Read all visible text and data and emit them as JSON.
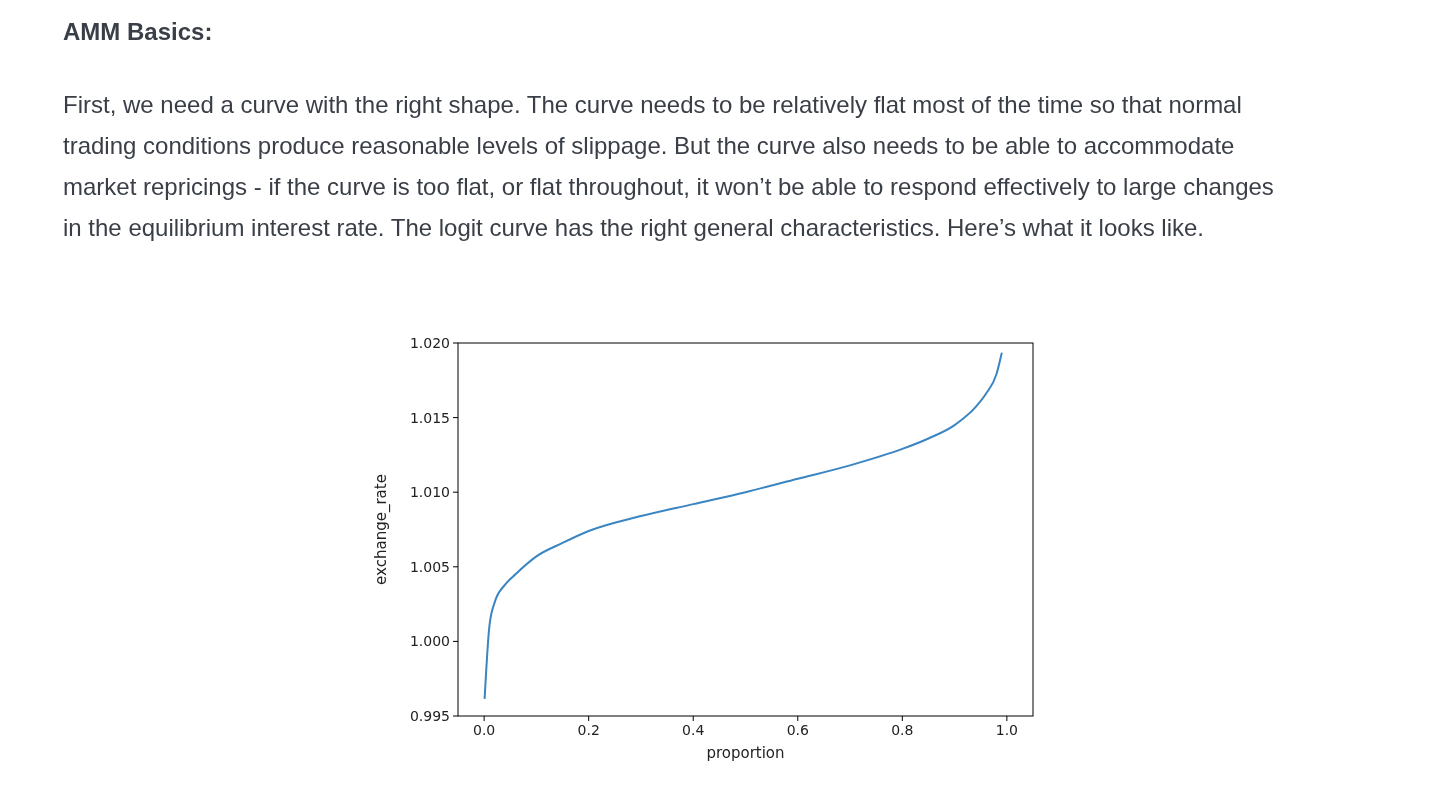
{
  "chart_data": {
    "type": "line",
    "title": "AMM Basics:",
    "subtitle": "First, we need a curve with the right shape. The curve needs to be relatively flat most of the time so that normal trading conditions produce reasonable levels of slippage. But the curve also needs to be able to accommodate market repricings - if the curve is too flat, or flat throughout, it won’t be able to respond effectively to large changes in the equilibrium interest rate. The logit curve has the right general characteristics. Here’s what it looks like.",
    "xlabel": "proportion",
    "ylabel": "exchange_rate",
    "x": [
      0.001,
      0.01,
      0.02,
      0.04,
      0.06,
      0.1,
      0.15,
      0.2,
      0.3,
      0.4,
      0.5,
      0.6,
      0.7,
      0.8,
      0.85,
      0.9,
      0.94,
      0.96,
      0.98,
      0.99
    ],
    "series": [
      {
        "color": "#3a85c2",
        "values": [
          0.9962,
          1.001,
          1.0026,
          1.0038,
          1.0045,
          1.0057,
          1.0066,
          1.0074,
          1.0084,
          1.0092,
          1.01,
          1.0109,
          1.0118,
          1.0129,
          1.0136,
          1.0145,
          1.0157,
          1.0166,
          1.0179,
          1.0193
        ]
      }
    ],
    "xlim": [
      -0.05,
      1.05
    ],
    "ylim": [
      0.995,
      1.02
    ],
    "xticks": [
      {
        "value": 0,
        "label": "0.0"
      },
      {
        "value": 0.2,
        "label": "0.2"
      },
      {
        "value": 0.4,
        "label": "0.4"
      },
      {
        "value": 0.6,
        "label": "0.6"
      },
      {
        "value": 0.8,
        "label": "0.8"
      },
      {
        "value": 1,
        "label": "1.0"
      }
    ],
    "yticks": [
      {
        "value": 0.995,
        "label": "0.995"
      },
      {
        "value": 1,
        "label": "1.000"
      },
      {
        "value": 1.005,
        "label": "1.005"
      },
      {
        "value": 1.01,
        "label": "1.010"
      },
      {
        "value": 1.015,
        "label": "1.015"
      },
      {
        "value": 1.02,
        "label": "1.020"
      }
    ],
    "grid": false,
    "marker": "none",
    "line_style": "solid"
  }
}
